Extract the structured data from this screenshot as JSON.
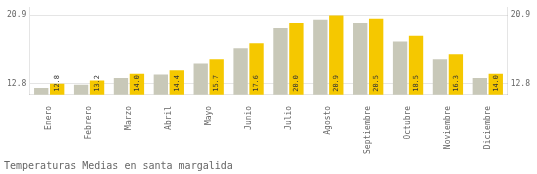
{
  "chart_data": {
    "type": "bar",
    "title": "Temperaturas Medias en santa margalida",
    "categories": [
      "Enero",
      "Febrero",
      "Marzo",
      "Abril",
      "Mayo",
      "Junio",
      "Julio",
      "Agosto",
      "Septiembre",
      "Octubre",
      "Noviembre",
      "Diciembre"
    ],
    "series": [
      {
        "color": "#C8C8B8",
        "values": [
          12.3,
          12.7,
          13.5,
          13.9,
          15.2,
          17.0,
          19.4,
          20.4,
          20.0,
          17.8,
          15.7,
          13.5
        ]
      },
      {
        "color": "#F5C800",
        "values": [
          12.8,
          13.2,
          14.0,
          14.4,
          15.7,
          17.6,
          20.0,
          20.9,
          20.5,
          18.5,
          16.3,
          14.0
        ],
        "data_labels": true,
        "value_labels": [
          "12.8",
          "13.2",
          "14.0",
          "14.4",
          "15.7",
          "17.6",
          "20.0",
          "20.9",
          "20.5",
          "18.5",
          "16.3",
          "14.0"
        ]
      }
    ],
    "ylim": [
      11.5,
      21.8
    ],
    "yticks": [
      12.8,
      20.9
    ],
    "y2lim": [
      11.5,
      21.8
    ],
    "y2ticks": [
      12.8,
      20.9
    ],
    "grid": true
  }
}
